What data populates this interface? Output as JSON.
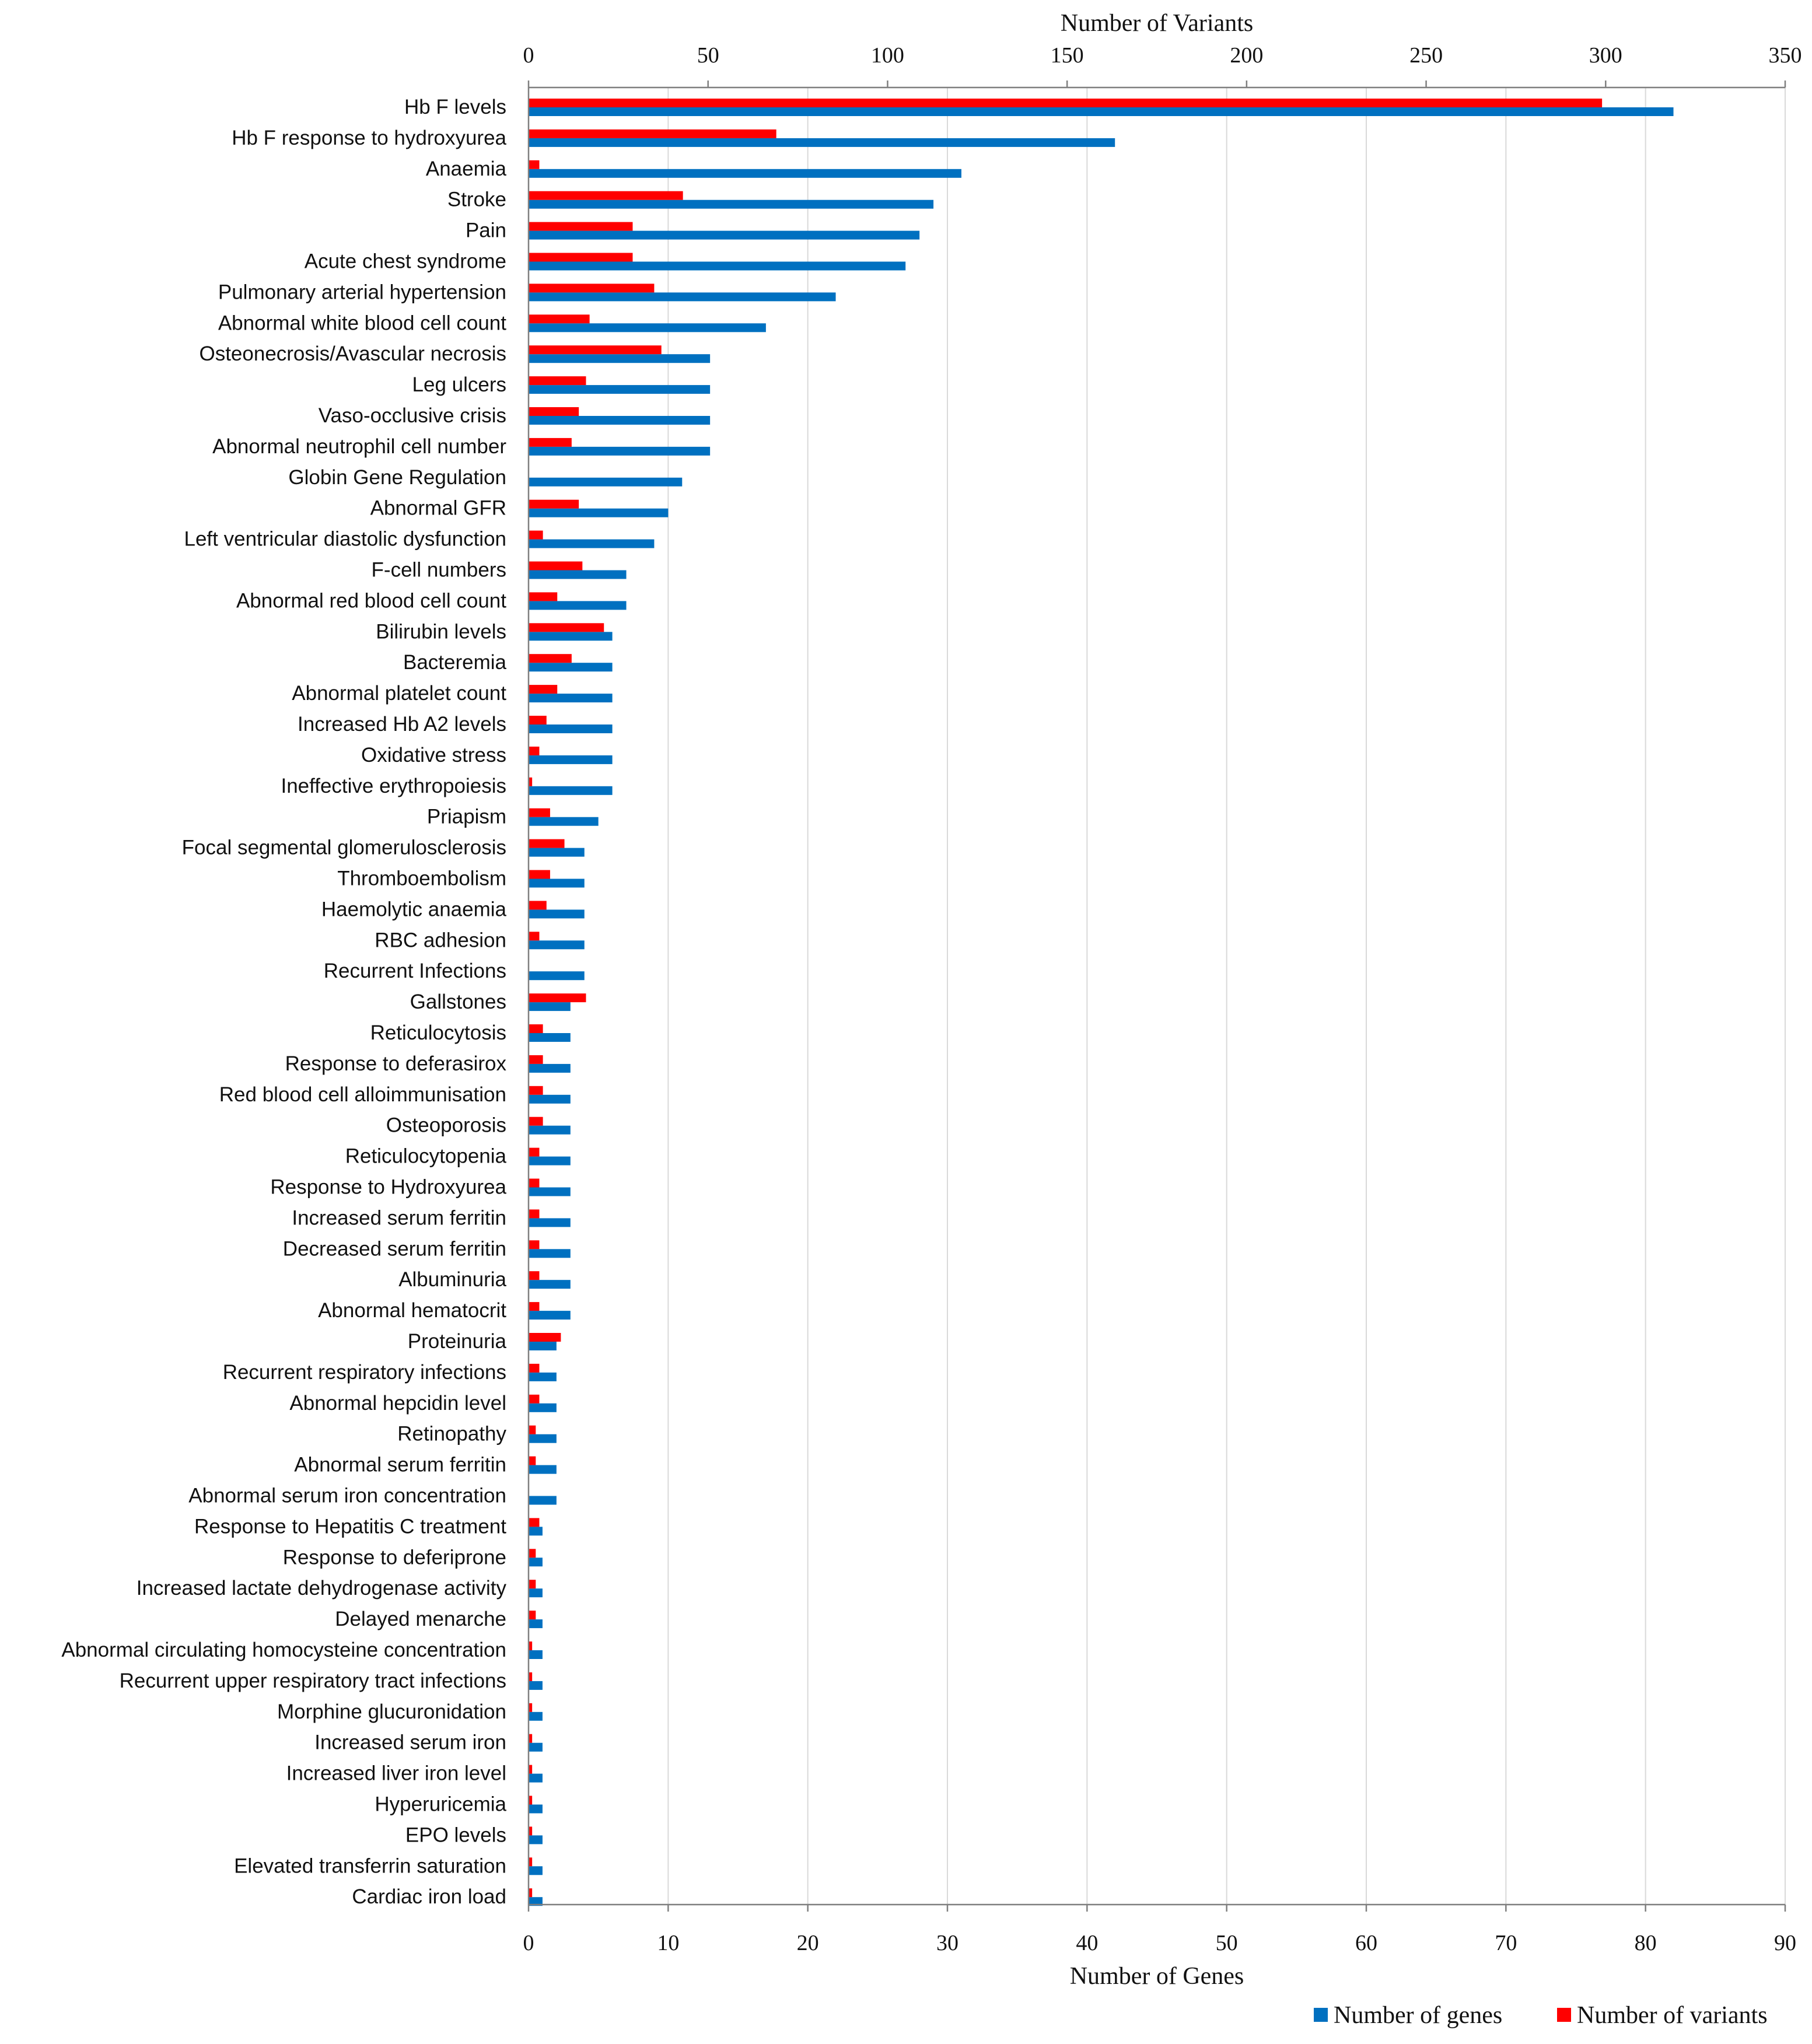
{
  "chart_data": {
    "type": "bar",
    "orientation": "horizontal",
    "title": "",
    "top_axis": {
      "label": "Number of Variants",
      "range": [
        0,
        350
      ],
      "ticks": [
        0,
        50,
        100,
        150,
        200,
        250,
        300,
        350
      ]
    },
    "bottom_axis": {
      "label": "Number of Genes",
      "range": [
        0,
        90
      ],
      "ticks": [
        0,
        10,
        20,
        30,
        40,
        50,
        60,
        70,
        80,
        90
      ]
    },
    "grid": true,
    "legend_position": "bottom-right",
    "categories": [
      "Hb F levels",
      "Hb F response to hydroxyurea",
      "Anaemia",
      "Stroke",
      "Pain",
      "Acute chest syndrome",
      "Pulmonary arterial hypertension",
      "Abnormal white blood cell count",
      "Osteonecrosis/Avascular necrosis",
      "Leg ulcers",
      "Vaso-occlusive crisis",
      "Abnormal neutrophil cell number",
      "Globin Gene Regulation",
      "Abnormal GFR",
      "Left ventricular diastolic dysfunction",
      "F-cell numbers",
      "Abnormal red blood cell count",
      "Bilirubin levels",
      "Bacteremia",
      "Abnormal platelet count",
      "Increased Hb A2 levels",
      "Oxidative stress",
      "Ineffective erythropoiesis",
      "Priapism",
      "Focal segmental glomerulosclerosis",
      "Thromboembolism",
      "Haemolytic anaemia",
      "RBC adhesion",
      "Recurrent Infections",
      "Gallstones",
      "Reticulocytosis",
      "Response to deferasirox",
      "Red blood cell alloimmunisation",
      "Osteoporosis",
      "Reticulocytopenia",
      "Response to Hydroxyurea",
      "Increased serum ferritin",
      "Decreased serum ferritin",
      "Albuminuria",
      "Abnormal hematocrit",
      "Proteinuria",
      "Recurrent respiratory infections",
      "Abnormal hepcidin level",
      "Retinopathy",
      "Abnormal serum ferritin",
      "Abnormal serum iron concentration",
      "Response to Hepatitis C treatment",
      "Response to deferiprone",
      "Increased lactate dehydrogenase activity",
      "Delayed menarche",
      "Abnormal circulating homocysteine concentration",
      "Recurrent upper respiratory tract infections",
      "Morphine glucuronidation",
      "Increased serum iron",
      "Increased liver iron level",
      "Hyperuricemia",
      "EPO levels",
      "Elevated transferrin saturation",
      "Cardiac iron load"
    ],
    "series": [
      {
        "name": "Number of genes",
        "axis": "bottom",
        "color": "#0070c0",
        "values": [
          82,
          42,
          31,
          29,
          28,
          27,
          22,
          17,
          13,
          13,
          13,
          13,
          11,
          10,
          9,
          7,
          7,
          6,
          6,
          6,
          6,
          6,
          6,
          5,
          4,
          4,
          4,
          4,
          4,
          3,
          3,
          3,
          3,
          3,
          3,
          3,
          3,
          3,
          3,
          3,
          2,
          2,
          2,
          2,
          2,
          2,
          1,
          1,
          1,
          1,
          1,
          1,
          1,
          1,
          1,
          1,
          1,
          1,
          1
        ]
      },
      {
        "name": "Number of variants",
        "axis": "top",
        "color": "#ff0000",
        "values": [
          299,
          69,
          3,
          43,
          29,
          29,
          35,
          17,
          37,
          16,
          14,
          12,
          0,
          14,
          4,
          15,
          8,
          21,
          12,
          8,
          5,
          3,
          1,
          6,
          10,
          6,
          5,
          3,
          0,
          16,
          4,
          4,
          4,
          4,
          3,
          3,
          3,
          3,
          3,
          3,
          9,
          3,
          3,
          2,
          2,
          0,
          3,
          2,
          2,
          2,
          1,
          1,
          1,
          1,
          1,
          1,
          1,
          1,
          1
        ]
      }
    ]
  }
}
